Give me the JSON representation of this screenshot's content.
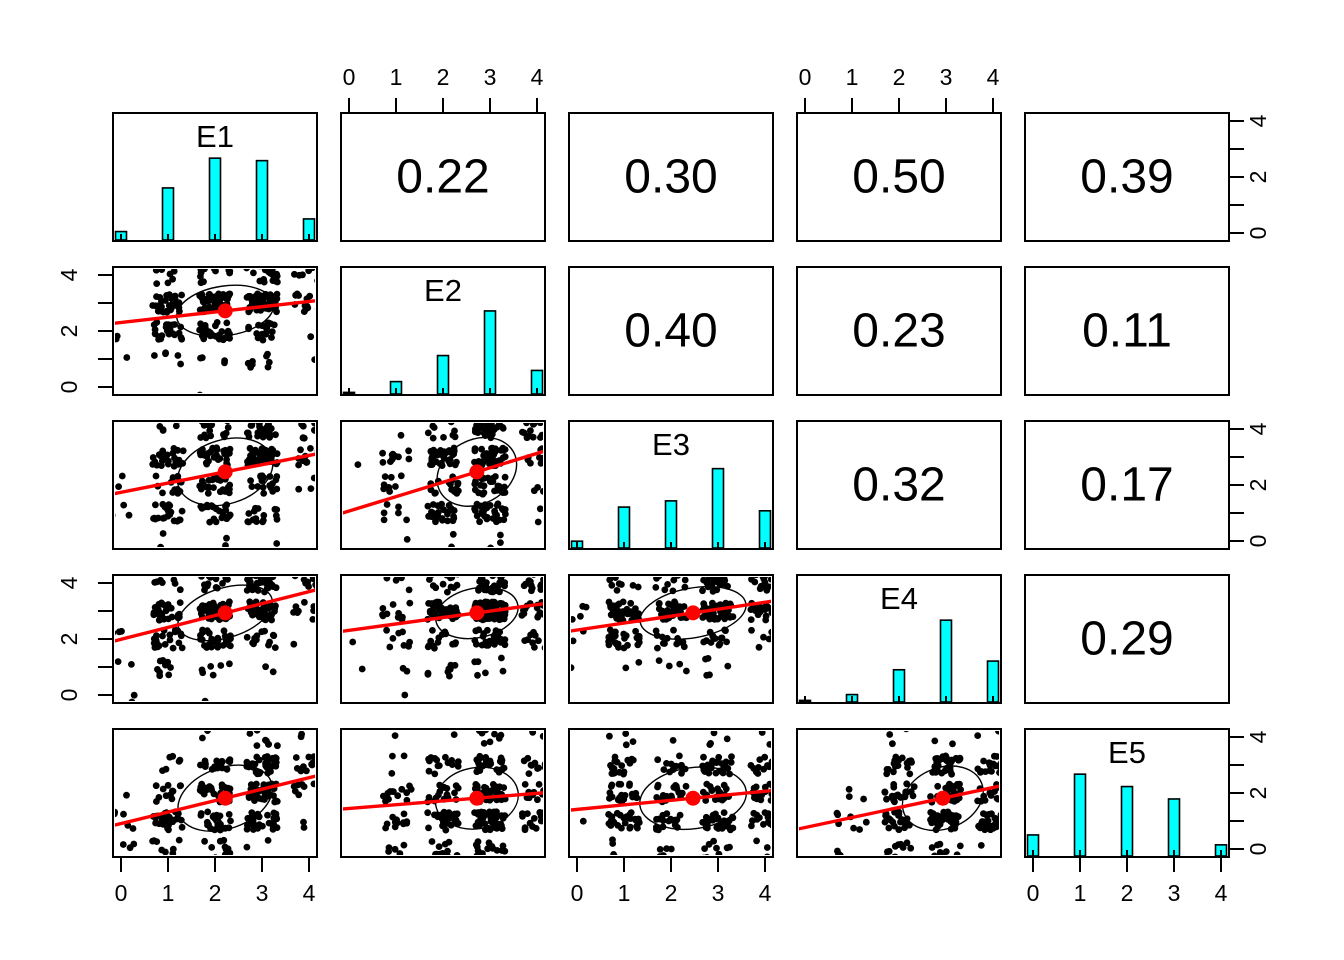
{
  "figure": {
    "background": "#ffffff",
    "description": "R pairs.panels scatterplot matrix of five variables"
  },
  "chart_data": {
    "type": "scatter",
    "subtype": "scatterplot-matrix",
    "variables": [
      "E1",
      "E2",
      "E3",
      "E4",
      "E5"
    ],
    "value_range": [
      0,
      4
    ],
    "axis_ticks": [
      0,
      1,
      2,
      3,
      4
    ],
    "axis_tick_labels": [
      "0",
      "1",
      "2",
      "3",
      "4"
    ],
    "side_axis_labeled_ticks": [
      0,
      2,
      4
    ],
    "side_axis_labels": [
      "0",
      "2",
      "4"
    ],
    "n_points": 300,
    "jitter": 0.33,
    "diagonal": "histogram",
    "upper_triangle": "correlation-values",
    "lower_triangle": "scatter-with-regression-ellipse",
    "histogram_rel_heights": {
      "E1": [
        0.068,
        0.42,
        0.66,
        0.64,
        0.17
      ],
      "E2": [
        0.013,
        0.1,
        0.31,
        0.67,
        0.19
      ],
      "E3": [
        0.055,
        0.33,
        0.38,
        0.64,
        0.3
      ],
      "E4": [
        0.013,
        0.06,
        0.26,
        0.66,
        0.33
      ],
      "E5": [
        0.17,
        0.66,
        0.56,
        0.46,
        0.09
      ]
    },
    "correlations": [
      {
        "row_var": "E1",
        "col_var": "E2",
        "r": 0.22,
        "label": "0.22"
      },
      {
        "row_var": "E1",
        "col_var": "E3",
        "r": 0.3,
        "label": "0.30"
      },
      {
        "row_var": "E1",
        "col_var": "E4",
        "r": 0.5,
        "label": "0.50"
      },
      {
        "row_var": "E1",
        "col_var": "E5",
        "r": 0.39,
        "label": "0.39"
      },
      {
        "row_var": "E2",
        "col_var": "E3",
        "r": 0.4,
        "label": "0.40"
      },
      {
        "row_var": "E2",
        "col_var": "E4",
        "r": 0.23,
        "label": "0.23"
      },
      {
        "row_var": "E2",
        "col_var": "E5",
        "r": 0.11,
        "label": "0.11"
      },
      {
        "row_var": "E3",
        "col_var": "E4",
        "r": 0.32,
        "label": "0.32"
      },
      {
        "row_var": "E3",
        "col_var": "E5",
        "r": 0.17,
        "label": "0.17"
      },
      {
        "row_var": "E4",
        "col_var": "E5",
        "r": 0.29,
        "label": "0.29"
      }
    ],
    "axes_layout": {
      "top_axis_columns": [
        1,
        3
      ],
      "bottom_axis_columns": [
        0,
        2,
        4
      ],
      "left_axis_rows": [
        1,
        3
      ],
      "right_axis_rows": [
        0,
        2,
        4
      ]
    },
    "colors": {
      "panel_border": "#000000",
      "histogram_fill": "#00FFFF",
      "histogram_border": "#000000",
      "point": "#000000",
      "regression_line": "#FF0000",
      "centroid_dot": "#FF0000",
      "ellipse": "#000000",
      "text": "#000000"
    },
    "legend": "none",
    "grid": "off"
  }
}
